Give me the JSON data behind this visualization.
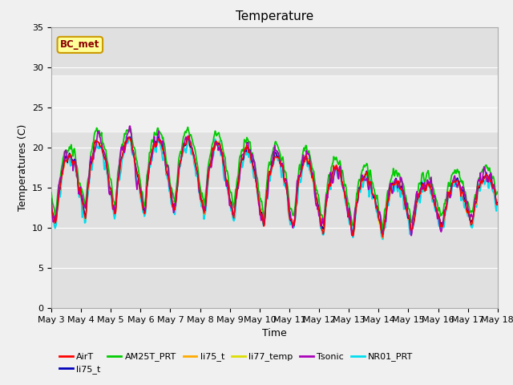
{
  "title": "Temperature",
  "xlabel": "Time",
  "ylabel": "Temperatures (C)",
  "ylim": [
    0,
    35
  ],
  "yticks": [
    0,
    5,
    10,
    15,
    20,
    25,
    30,
    35
  ],
  "xlim": [
    3,
    18
  ],
  "x_tick_days": [
    3,
    4,
    5,
    6,
    7,
    8,
    9,
    10,
    11,
    12,
    13,
    14,
    15,
    16,
    17,
    18
  ],
  "shaded_band_lo": 22,
  "shaded_band_hi": 29,
  "annotation_text": "BC_met",
  "legend_entries": [
    {
      "label": "AirT",
      "color": "#ff0000"
    },
    {
      "label": "li75_t",
      "color": "#0000bb"
    },
    {
      "label": "AM25T_PRT",
      "color": "#00cc00"
    },
    {
      "label": "li75_t",
      "color": "#ffaa00"
    },
    {
      "label": "li77_temp",
      "color": "#dddd00"
    },
    {
      "label": "Tsonic",
      "color": "#aa00bb"
    },
    {
      "label": "NR01_PRT",
      "color": "#00ddee"
    }
  ],
  "plot_bg_color": "#e0e0e0",
  "fig_bg_color": "#f0f0f0"
}
